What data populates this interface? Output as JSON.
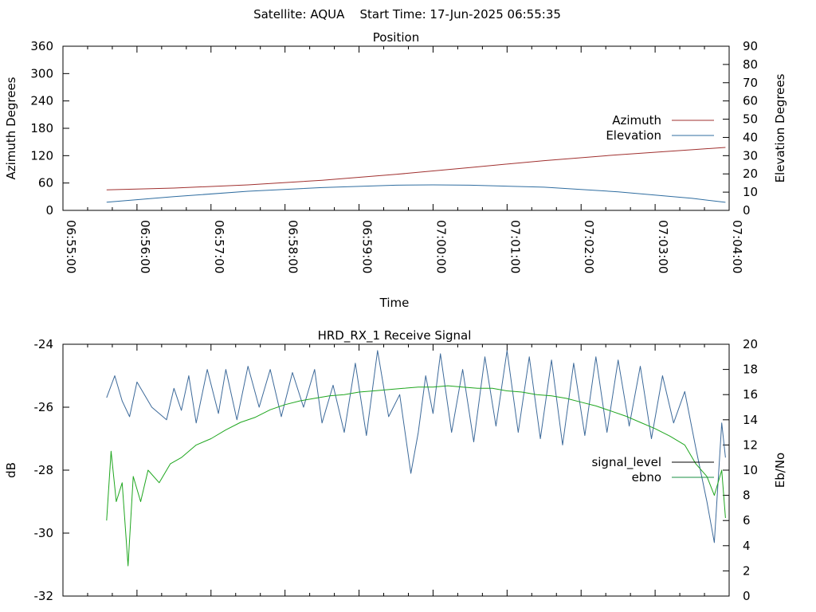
{
  "header": {
    "title": "Satellite: AQUA    Start Time: 17-Jun-2025 06:55:35"
  },
  "colors": {
    "azimuth": "#a0302f",
    "elevation": "#2f6da0",
    "signal_level": "#000000",
    "ebno_legend": "#1a8f43",
    "signal_trace": "#3d6a9a",
    "ebno_trace": "#1fa61f"
  },
  "chart_data": [
    {
      "type": "line",
      "title": "Position",
      "xlabel": "Time",
      "ylabel": "Azimuth Degrees",
      "y2label": "Elevation Degrees",
      "x_ticks": [
        "06:55:00",
        "06:56:00",
        "06:57:00",
        "06:58:00",
        "06:59:00",
        "07:00:00",
        "07:01:00",
        "07:02:00",
        "07:03:00",
        "07:04:00"
      ],
      "ylim": [
        0,
        360
      ],
      "yticks": [
        0,
        60,
        120,
        180,
        240,
        300,
        360
      ],
      "y2lim": [
        0,
        90
      ],
      "y2ticks": [
        0,
        10,
        20,
        30,
        40,
        50,
        60,
        70,
        80,
        90
      ],
      "xlim_minutes": [
        0,
        9
      ],
      "legend": "right",
      "series": [
        {
          "name": "Azimuth",
          "axis": "left",
          "x": [
            0.59,
            1.5,
            2.5,
            3.5,
            4.5,
            5.5,
            6.5,
            7.5,
            8.5,
            8.95
          ],
          "values": [
            45,
            49,
            56,
            66,
            79,
            94,
            109,
            122,
            133,
            138
          ]
        },
        {
          "name": "Elevation",
          "axis": "right",
          "x": [
            0.59,
            1.5,
            2.5,
            3.5,
            4.5,
            5.0,
            5.5,
            6.5,
            7.5,
            8.5,
            8.95
          ],
          "values": [
            4.5,
            7.5,
            10.5,
            12.5,
            13.8,
            14.0,
            13.8,
            12.7,
            10.2,
            6.6,
            4.4
          ]
        }
      ]
    },
    {
      "type": "line",
      "title": "HRD_RX_1 Receive Signal",
      "ylabel": "dB",
      "y2label": "Eb/No",
      "ylim": [
        -32,
        -24
      ],
      "yticks": [
        -32,
        -30,
        -28,
        -26,
        -24
      ],
      "y2lim": [
        0,
        20
      ],
      "y2ticks": [
        0,
        2,
        4,
        6,
        8,
        10,
        12,
        14,
        16,
        18,
        20
      ],
      "xlim_minutes": [
        0,
        9
      ],
      "legend": "right",
      "series": [
        {
          "name": "signal_level",
          "axis": "left",
          "x": [
            0.59,
            0.7,
            0.8,
            0.9,
            1.0,
            1.2,
            1.4,
            1.5,
            1.6,
            1.7,
            1.8,
            1.95,
            2.1,
            2.2,
            2.35,
            2.5,
            2.65,
            2.8,
            2.95,
            3.1,
            3.25,
            3.4,
            3.5,
            3.65,
            3.8,
            3.95,
            4.1,
            4.25,
            4.4,
            4.55,
            4.7,
            4.8,
            4.9,
            5.0,
            5.1,
            5.25,
            5.4,
            5.55,
            5.7,
            5.85,
            6.0,
            6.15,
            6.3,
            6.45,
            6.6,
            6.75,
            6.9,
            7.05,
            7.2,
            7.35,
            7.5,
            7.65,
            7.8,
            7.95,
            8.1,
            8.25,
            8.4,
            8.55,
            8.7,
            8.8,
            8.9,
            8.95
          ],
          "values": [
            -25.7,
            -25.0,
            -25.8,
            -26.3,
            -25.2,
            -26.0,
            -26.4,
            -25.4,
            -26.1,
            -25.0,
            -26.5,
            -24.8,
            -26.2,
            -24.8,
            -26.4,
            -24.7,
            -26.0,
            -24.8,
            -26.3,
            -24.9,
            -26.0,
            -24.8,
            -26.5,
            -25.3,
            -26.8,
            -24.6,
            -26.9,
            -24.2,
            -26.3,
            -25.6,
            -28.1,
            -26.8,
            -25.0,
            -26.2,
            -24.3,
            -26.8,
            -24.8,
            -27.1,
            -24.4,
            -26.6,
            -24.2,
            -26.8,
            -24.4,
            -27.0,
            -24.5,
            -27.2,
            -24.6,
            -26.9,
            -24.4,
            -26.8,
            -24.5,
            -26.6,
            -24.7,
            -27.0,
            -25.0,
            -26.5,
            -25.5,
            -27.3,
            -29.0,
            -30.3,
            -26.5,
            -27.6
          ]
        },
        {
          "name": "ebno",
          "axis": "right",
          "x": [
            0.59,
            0.65,
            0.72,
            0.8,
            0.88,
            0.95,
            1.05,
            1.15,
            1.3,
            1.45,
            1.6,
            1.8,
            2.0,
            2.2,
            2.4,
            2.6,
            2.8,
            3.0,
            3.2,
            3.4,
            3.6,
            3.8,
            4.0,
            4.2,
            4.4,
            4.6,
            4.8,
            5.0,
            5.2,
            5.4,
            5.6,
            5.8,
            6.0,
            6.2,
            6.4,
            6.6,
            6.8,
            7.0,
            7.2,
            7.4,
            7.6,
            7.8,
            8.0,
            8.2,
            8.4,
            8.55,
            8.7,
            8.8,
            8.9,
            8.95
          ],
          "values": [
            6.0,
            11.5,
            7.5,
            9.0,
            2.4,
            9.5,
            7.5,
            10.0,
            9.0,
            10.5,
            11.0,
            12.0,
            12.5,
            13.2,
            13.8,
            14.2,
            14.8,
            15.2,
            15.5,
            15.7,
            15.9,
            16.0,
            16.2,
            16.3,
            16.4,
            16.5,
            16.6,
            16.6,
            16.7,
            16.6,
            16.5,
            16.5,
            16.3,
            16.2,
            16.0,
            15.9,
            15.7,
            15.4,
            15.1,
            14.7,
            14.3,
            13.8,
            13.3,
            12.7,
            12.0,
            10.5,
            9.5,
            8.0,
            10.0,
            6.2
          ]
        }
      ]
    }
  ]
}
